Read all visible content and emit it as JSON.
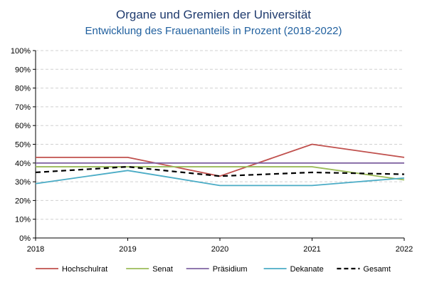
{
  "chart_data": {
    "type": "line",
    "title": "Organe und Gremien der Universität",
    "subtitle": "Entwicklung des Frauenanteils in Prozent (2018-2022)",
    "x": [
      "2018",
      "2019",
      "2020",
      "2021",
      "2022"
    ],
    "ylim": [
      0,
      100
    ],
    "y_ticks": [
      "0%",
      "10%",
      "20%",
      "30%",
      "40%",
      "50%",
      "60%",
      "70%",
      "80%",
      "90%",
      "100%"
    ],
    "grid": true,
    "legend_position": "bottom",
    "series": [
      {
        "name": "Hochschulrat",
        "values": [
          43,
          43,
          33,
          50,
          43
        ],
        "color": "#c0504d",
        "dash": false
      },
      {
        "name": "Senat",
        "values": [
          38,
          38,
          38,
          38,
          31
        ],
        "color": "#9bbb59",
        "dash": false
      },
      {
        "name": "Präsidium",
        "values": [
          40,
          40,
          40,
          40,
          40
        ],
        "color": "#8064a2",
        "dash": false
      },
      {
        "name": "Dekanate",
        "values": [
          29,
          36,
          28,
          28,
          32
        ],
        "color": "#4bacc6",
        "dash": false
      },
      {
        "name": "Gesamt",
        "values": [
          35,
          38,
          33,
          35,
          34
        ],
        "color": "#000000",
        "dash": true
      }
    ]
  }
}
